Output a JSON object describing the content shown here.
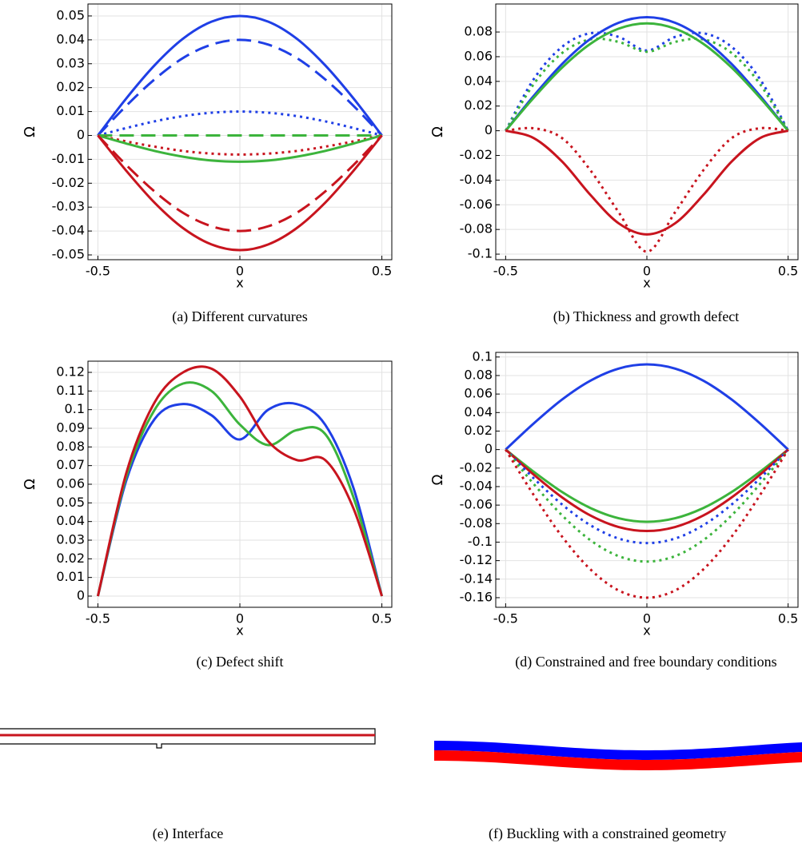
{
  "chart_data": [
    {
      "type": "line",
      "caption": "(a) Different curvatures",
      "xlabel": "x",
      "ylabel": "Ω",
      "x": [
        -0.5,
        -0.4,
        -0.3,
        -0.2,
        -0.1,
        0,
        0.1,
        0.2,
        0.3,
        0.4,
        0.5
      ],
      "xlim": [
        -0.535,
        0.535
      ],
      "ylim": [
        -0.052,
        0.055
      ],
      "xticks": [
        -0.5,
        0,
        0.5
      ],
      "yticks": [
        -0.05,
        -0.04,
        -0.03,
        -0.02,
        -0.01,
        0,
        0.01,
        0.02,
        0.03,
        0.04,
        0.05
      ],
      "grid": true,
      "series": [
        {
          "color": "#1f3fe6",
          "dash": "solid",
          "values": [
            0,
            0.0155,
            0.0294,
            0.0405,
            0.0476,
            0.05,
            0.0476,
            0.0405,
            0.0294,
            0.0155,
            0
          ]
        },
        {
          "color": "#1f3fe6",
          "dash": "dashed",
          "values": [
            0,
            0.0124,
            0.0235,
            0.0324,
            0.038,
            0.04,
            0.038,
            0.0324,
            0.0235,
            0.0124,
            0
          ]
        },
        {
          "color": "#1f3fe6",
          "dash": "dotted",
          "values": [
            0,
            0.0031,
            0.0059,
            0.0081,
            0.0095,
            0.01,
            0.0095,
            0.0081,
            0.0059,
            0.0031,
            0
          ]
        },
        {
          "color": "#3cb43c",
          "dash": "dashed",
          "values": [
            0,
            0,
            0,
            0,
            0,
            0,
            0,
            0,
            0,
            0,
            0
          ]
        },
        {
          "color": "#c8141e",
          "dash": "dotted",
          "values": [
            0,
            -0.0025,
            -0.0047,
            -0.0065,
            -0.0076,
            -0.008,
            -0.0076,
            -0.0065,
            -0.0047,
            -0.0025,
            0
          ]
        },
        {
          "color": "#3cb43c",
          "dash": "solid",
          "values": [
            0,
            -0.0034,
            -0.0065,
            -0.0089,
            -0.0105,
            -0.011,
            -0.0105,
            -0.0089,
            -0.0065,
            -0.0034,
            0
          ]
        },
        {
          "color": "#c8141e",
          "dash": "dashed",
          "values": [
            0,
            -0.0124,
            -0.0235,
            -0.0324,
            -0.038,
            -0.04,
            -0.038,
            -0.0324,
            -0.0235,
            -0.0124,
            0
          ]
        },
        {
          "color": "#c8141e",
          "dash": "solid",
          "values": [
            0,
            -0.0148,
            -0.0282,
            -0.0388,
            -0.0456,
            -0.048,
            -0.0456,
            -0.0388,
            -0.0282,
            -0.0148,
            0
          ]
        }
      ]
    },
    {
      "type": "line",
      "caption": "(b) Thickness and growth defect",
      "xlabel": "x",
      "ylabel": "Ω",
      "x": [
        -0.5,
        -0.4,
        -0.3,
        -0.2,
        -0.1,
        0,
        0.1,
        0.2,
        0.3,
        0.4,
        0.5
      ],
      "xlim": [
        -0.535,
        0.535
      ],
      "ylim": [
        -0.1045,
        0.1027
      ],
      "xticks": [
        -0.5,
        0,
        0.5
      ],
      "yticks": [
        -0.1,
        -0.08,
        -0.06,
        -0.04,
        -0.02,
        0,
        0.02,
        0.04,
        0.06,
        0.08
      ],
      "grid": true,
      "series": [
        {
          "color": "#1f3fe6",
          "dash": "dotted",
          "values": [
            0,
            0.042,
            0.068,
            0.079,
            0.076,
            0.065,
            0.076,
            0.079,
            0.068,
            0.042,
            0
          ]
        },
        {
          "color": "#3cb43c",
          "dash": "dotted",
          "values": [
            0,
            0.038,
            0.063,
            0.074,
            0.072,
            0.064,
            0.072,
            0.074,
            0.063,
            0.038,
            0
          ]
        },
        {
          "color": "#1f3fe6",
          "dash": "solid",
          "values": [
            0,
            0.0284,
            0.0541,
            0.0744,
            0.0875,
            0.092,
            0.0875,
            0.0744,
            0.0541,
            0.0284,
            0
          ]
        },
        {
          "color": "#3cb43c",
          "dash": "solid",
          "values": [
            0,
            0.0269,
            0.0512,
            0.0704,
            0.0827,
            0.087,
            0.0827,
            0.0704,
            0.0512,
            0.0269,
            0
          ]
        },
        {
          "color": "#c8141e",
          "dash": "solid",
          "values": [
            0,
            -0.006,
            -0.025,
            -0.052,
            -0.075,
            -0.084,
            -0.075,
            -0.052,
            -0.025,
            -0.006,
            0
          ]
        },
        {
          "color": "#c8141e",
          "dash": "dotted",
          "values": [
            0,
            0.002,
            -0.006,
            -0.032,
            -0.066,
            -0.098,
            -0.066,
            -0.032,
            -0.006,
            0.002,
            0
          ]
        }
      ]
    },
    {
      "type": "line",
      "caption": "(c) Defect shift",
      "xlabel": "x",
      "ylabel": "Ω",
      "x": [
        -0.5,
        -0.4,
        -0.3,
        -0.2,
        -0.1,
        0,
        0.1,
        0.2,
        0.3,
        0.4,
        0.5
      ],
      "xlim": [
        -0.535,
        0.535
      ],
      "ylim": [
        -0.006,
        0.126
      ],
      "xticks": [
        -0.5,
        0,
        0.5
      ],
      "yticks": [
        0,
        0.01,
        0.02,
        0.03,
        0.04,
        0.05,
        0.06,
        0.07,
        0.08,
        0.09,
        0.1,
        0.11,
        0.12
      ],
      "grid": true,
      "series": [
        {
          "color": "#1f3fe6",
          "dash": "solid",
          "values": [
            0,
            0.062,
            0.095,
            0.103,
            0.097,
            0.084,
            0.1,
            0.103,
            0.092,
            0.058,
            0
          ]
        },
        {
          "color": "#3cb43c",
          "dash": "solid",
          "values": [
            0,
            0.064,
            0.1,
            0.114,
            0.11,
            0.092,
            0.081,
            0.089,
            0.087,
            0.053,
            0
          ]
        },
        {
          "color": "#c8141e",
          "dash": "solid",
          "values": [
            0,
            0.066,
            0.104,
            0.12,
            0.122,
            0.107,
            0.083,
            0.073,
            0.073,
            0.047,
            0
          ]
        }
      ]
    },
    {
      "type": "line",
      "caption": "(d) Constrained and free boundary conditions",
      "xlabel": "x",
      "ylabel": "Ω",
      "x": [
        -0.5,
        -0.4,
        -0.3,
        -0.2,
        -0.1,
        0,
        0.1,
        0.2,
        0.3,
        0.4,
        0.5
      ],
      "xlim": [
        -0.535,
        0.535
      ],
      "ylim": [
        -0.1704,
        0.105
      ],
      "xticks": [
        -0.5,
        0,
        0.5
      ],
      "yticks": [
        -0.16,
        -0.14,
        -0.12,
        -0.1,
        -0.08,
        -0.06,
        -0.04,
        -0.02,
        0,
        0.02,
        0.04,
        0.06,
        0.08,
        0.1
      ],
      "grid": true,
      "series": [
        {
          "color": "#1f3fe6",
          "dash": "solid",
          "values": [
            0,
            0.0284,
            0.0541,
            0.0744,
            0.0875,
            0.092,
            0.0875,
            0.0744,
            0.0541,
            0.0284,
            0
          ]
        },
        {
          "color": "#3cb43c",
          "dash": "solid",
          "values": [
            0,
            -0.0241,
            -0.0459,
            -0.0631,
            -0.0742,
            -0.078,
            -0.0742,
            -0.0631,
            -0.0459,
            -0.0241,
            0
          ]
        },
        {
          "color": "#c8141e",
          "dash": "solid",
          "values": [
            0,
            -0.0272,
            -0.0517,
            -0.0712,
            -0.0837,
            -0.088,
            -0.0837,
            -0.0712,
            -0.0517,
            -0.0272,
            0
          ]
        },
        {
          "color": "#1f3fe6",
          "dash": "dotted",
          "values": [
            0,
            -0.0312,
            -0.0594,
            -0.0817,
            -0.0961,
            -0.101,
            -0.0961,
            -0.0817,
            -0.0594,
            -0.0312,
            0
          ]
        },
        {
          "color": "#3cb43c",
          "dash": "dotted",
          "values": [
            0,
            -0.0374,
            -0.0711,
            -0.0979,
            -0.1151,
            -0.121,
            -0.1151,
            -0.0979,
            -0.0711,
            -0.0374,
            0
          ]
        },
        {
          "color": "#c8141e",
          "dash": "dotted",
          "values": [
            0,
            -0.0494,
            -0.0941,
            -0.1294,
            -0.1522,
            -0.16,
            -0.1522,
            -0.1294,
            -0.0941,
            -0.0494,
            0
          ]
        }
      ]
    }
  ],
  "panels": [
    {
      "caption": "(e) Interface"
    },
    {
      "caption": "(f) Buckling with a constrained geometry"
    }
  ]
}
